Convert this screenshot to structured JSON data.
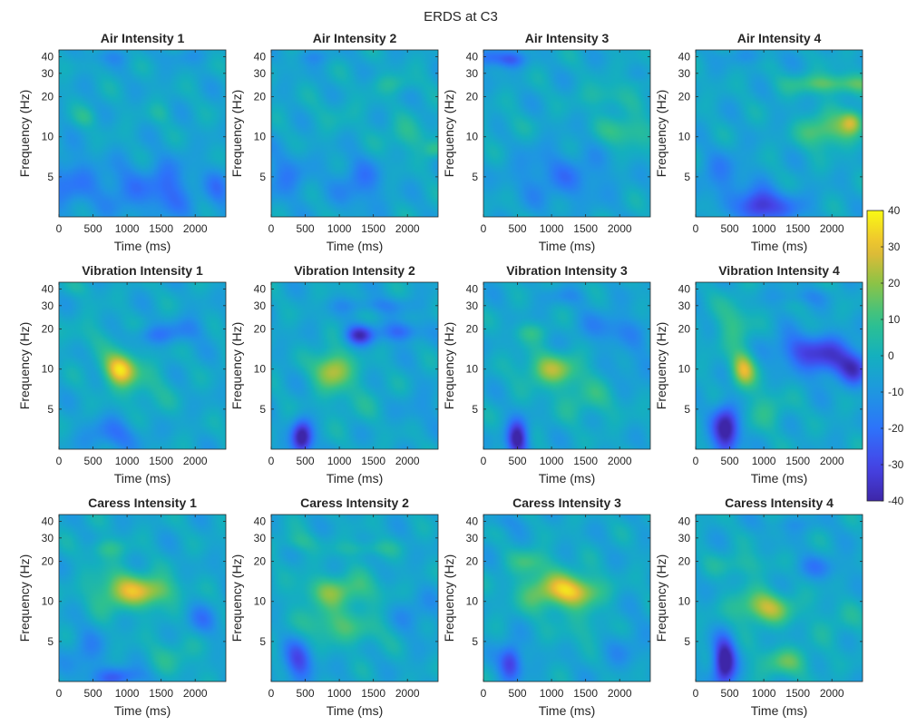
{
  "figure": {
    "title": "ERDS at C3"
  },
  "colorbar": {
    "min": -40,
    "max": 40,
    "ticks": [
      40,
      30,
      20,
      10,
      0,
      -10,
      -20,
      -30,
      -40
    ],
    "colormap": "parula"
  },
  "axes_common": {
    "xlabel": "Time (ms)",
    "ylabel": "Frequency (Hz)",
    "xlim": [
      0,
      2450
    ],
    "ylim": [
      2.5,
      45
    ],
    "yscale": "log",
    "xticks": [
      0,
      500,
      1000,
      1500,
      2000
    ],
    "yticks": [
      5,
      10,
      20,
      30,
      40
    ]
  },
  "chart_data": {
    "type": "heatmap",
    "panels": [
      {
        "title": "Air Intensity 1",
        "blobs": [
          [
            150,
            4.5,
            -14,
            300,
            0.35
          ],
          [
            950,
            4,
            -12,
            250,
            0.3
          ],
          [
            1600,
            4,
            -18,
            250,
            0.35
          ],
          [
            2350,
            4,
            -12,
            150,
            0.3
          ],
          [
            400,
            14,
            8,
            120,
            0.12
          ],
          [
            1500,
            15,
            6,
            120,
            0.12
          ],
          [
            700,
            40,
            -6,
            300,
            0.1
          ],
          [
            1900,
            40,
            -5,
            300,
            0.1
          ]
        ]
      },
      {
        "title": "Air Intensity 2",
        "blobs": [
          [
            200,
            5,
            -12,
            250,
            0.3
          ],
          [
            1300,
            4.5,
            -14,
            250,
            0.3
          ],
          [
            2000,
            10,
            10,
            250,
            0.2
          ],
          [
            1800,
            25,
            8,
            250,
            0.12
          ],
          [
            2400,
            8,
            12,
            100,
            0.1
          ],
          [
            1000,
            15,
            4,
            300,
            0.2
          ],
          [
            600,
            40,
            -8,
            200,
            0.1
          ]
        ]
      },
      {
        "title": "Air Intensity 3",
        "blobs": [
          [
            100,
            40,
            -20,
            150,
            0.12
          ],
          [
            400,
            38,
            -18,
            150,
            0.1
          ],
          [
            900,
            5,
            -10,
            350,
            0.35
          ],
          [
            1500,
            5,
            -8,
            300,
            0.3
          ],
          [
            2100,
            11,
            16,
            250,
            0.18
          ],
          [
            1800,
            20,
            10,
            250,
            0.15
          ],
          [
            2300,
            25,
            6,
            150,
            0.1
          ],
          [
            400,
            12,
            4,
            200,
            0.15
          ]
        ]
      },
      {
        "title": "Air Intensity 4",
        "blobs": [
          [
            900,
            3,
            -30,
            180,
            0.2
          ],
          [
            400,
            5,
            -12,
            250,
            0.3
          ],
          [
            1900,
            11,
            22,
            250,
            0.2
          ],
          [
            2300,
            13,
            28,
            120,
            0.15
          ],
          [
            2000,
            25,
            20,
            450,
            0.12
          ],
          [
            1300,
            3,
            -15,
            250,
            0.2
          ],
          [
            800,
            40,
            -6,
            300,
            0.1
          ]
        ]
      },
      {
        "title": "Vibration Intensity 1",
        "blobs": [
          [
            900,
            10,
            40,
            170,
            0.2
          ],
          [
            500,
            18,
            6,
            250,
            0.2
          ],
          [
            1300,
            7,
            8,
            250,
            0.3
          ],
          [
            1400,
            18,
            -12,
            250,
            0.12
          ],
          [
            1900,
            20,
            -10,
            200,
            0.15
          ],
          [
            800,
            3.2,
            -14,
            300,
            0.2
          ],
          [
            300,
            40,
            4,
            200,
            0.1
          ]
        ]
      },
      {
        "title": "Vibration Intensity 2",
        "blobs": [
          [
            450,
            3,
            -40,
            110,
            0.22
          ],
          [
            900,
            10,
            30,
            190,
            0.22
          ],
          [
            1300,
            18,
            -30,
            150,
            0.12
          ],
          [
            1900,
            19,
            -20,
            200,
            0.12
          ],
          [
            1500,
            30,
            -10,
            400,
            0.1
          ],
          [
            1200,
            6,
            6,
            300,
            0.3
          ],
          [
            2200,
            5,
            -6,
            200,
            0.2
          ]
        ]
      },
      {
        "title": "Vibration Intensity 3",
        "blobs": [
          [
            500,
            3,
            -40,
            110,
            0.22
          ],
          [
            1000,
            10,
            24,
            300,
            0.2
          ],
          [
            700,
            19,
            10,
            200,
            0.12
          ],
          [
            1500,
            6,
            10,
            350,
            0.25
          ],
          [
            1900,
            20,
            -12,
            350,
            0.2
          ],
          [
            2200,
            10,
            -8,
            200,
            0.2
          ],
          [
            1200,
            35,
            -6,
            300,
            0.1
          ]
        ]
      },
      {
        "title": "Vibration Intensity 4",
        "blobs": [
          [
            450,
            3.5,
            -40,
            140,
            0.32
          ],
          [
            700,
            10,
            30,
            130,
            0.22
          ],
          [
            550,
            22,
            14,
            180,
            0.3
          ],
          [
            1000,
            5,
            10,
            250,
            0.25
          ],
          [
            1500,
            14,
            -18,
            300,
            0.2
          ],
          [
            2000,
            12,
            -25,
            300,
            0.25
          ],
          [
            2350,
            10,
            -20,
            150,
            0.2
          ],
          [
            1500,
            35,
            -8,
            300,
            0.1
          ]
        ]
      },
      {
        "title": "Caress Intensity 1",
        "blobs": [
          [
            900,
            12,
            24,
            300,
            0.25
          ],
          [
            1400,
            12,
            22,
            250,
            0.18
          ],
          [
            700,
            25,
            12,
            200,
            0.12
          ],
          [
            400,
            4,
            -10,
            200,
            0.3
          ],
          [
            900,
            2.7,
            -20,
            250,
            0.12
          ],
          [
            2100,
            7,
            -12,
            180,
            0.2
          ],
          [
            1700,
            4,
            8,
            300,
            0.25
          ]
        ]
      },
      {
        "title": "Caress Intensity 2",
        "blobs": [
          [
            400,
            3.5,
            -25,
            150,
            0.25
          ],
          [
            1000,
            12,
            20,
            400,
            0.2
          ],
          [
            800,
            7,
            14,
            250,
            0.2
          ],
          [
            1300,
            6,
            10,
            350,
            0.2
          ],
          [
            400,
            28,
            10,
            200,
            0.12
          ],
          [
            1400,
            25,
            10,
            300,
            0.1
          ],
          [
            2100,
            8,
            -8,
            250,
            0.25
          ]
        ]
      },
      {
        "title": "Caress Intensity 3",
        "blobs": [
          [
            400,
            3.5,
            -30,
            120,
            0.22
          ],
          [
            1000,
            12,
            24,
            350,
            0.25
          ],
          [
            700,
            20,
            14,
            200,
            0.15
          ],
          [
            1400,
            12,
            22,
            250,
            0.18
          ],
          [
            2000,
            5,
            -8,
            300,
            0.3
          ],
          [
            1600,
            6,
            10,
            300,
            0.2
          ],
          [
            300,
            40,
            -6,
            200,
            0.1
          ]
        ]
      },
      {
        "title": "Caress Intensity 4",
        "blobs": [
          [
            420,
            3.5,
            -45,
            120,
            0.28
          ],
          [
            1000,
            9,
            28,
            300,
            0.2
          ],
          [
            1300,
            3.5,
            16,
            300,
            0.18
          ],
          [
            700,
            19,
            10,
            300,
            0.15
          ],
          [
            1800,
            18,
            -10,
            300,
            0.15
          ],
          [
            2100,
            7,
            6,
            300,
            0.25
          ],
          [
            1400,
            38,
            -6,
            300,
            0.1
          ]
        ]
      }
    ]
  }
}
